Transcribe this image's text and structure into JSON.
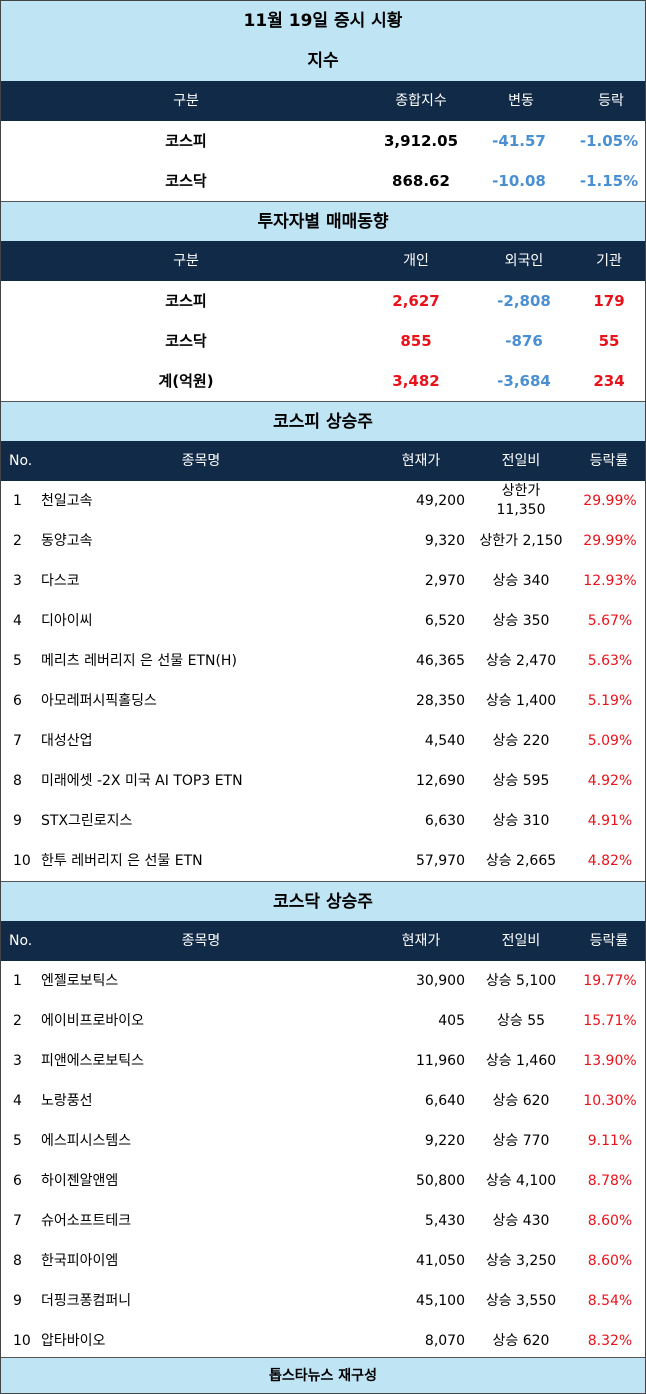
{
  "title": "11월 19일 증시 시황",
  "index": {
    "section_title": "지수",
    "headers": [
      "구분",
      "종합지수",
      "변동",
      "등락"
    ],
    "rows": [
      {
        "name": "코스피",
        "value": "3,912.05",
        "change": "-41.57",
        "rate": "-1.05%"
      },
      {
        "name": "코스닥",
        "value": "868.62",
        "change": "-10.08",
        "rate": "-1.15%"
      }
    ]
  },
  "investors": {
    "section_title": "투자자별 매매동향",
    "headers": [
      "구분",
      "개인",
      "외국인",
      "기관"
    ],
    "rows": [
      {
        "name": "코스피",
        "individual": "2,627",
        "foreign": "-2,808",
        "institution": "179"
      },
      {
        "name": "코스닥",
        "individual": "855",
        "foreign": "-876",
        "institution": "55"
      },
      {
        "name": "계(억원)",
        "individual": "3,482",
        "foreign": "-3,684",
        "institution": "234"
      }
    ]
  },
  "kospi_gainers": {
    "section_title": "코스피 상승주",
    "headers": [
      "No.",
      "종목명",
      "현재가",
      "전일비",
      "등락률"
    ],
    "rows": [
      {
        "no": "1",
        "name": "천일고속",
        "price": "49,200",
        "diff_line1": "상한가",
        "diff_line2": "11,350",
        "rate": "29.99%"
      },
      {
        "no": "2",
        "name": "동양고속",
        "price": "9,320",
        "diff": "상한가 2,150",
        "rate": "29.99%"
      },
      {
        "no": "3",
        "name": "다스코",
        "price": "2,970",
        "diff": "상승 340",
        "rate": "12.93%"
      },
      {
        "no": "4",
        "name": "디아이씨",
        "price": "6,520",
        "diff": "상승 350",
        "rate": "5.67%"
      },
      {
        "no": "5",
        "name": "메리츠 레버리지 은 선물 ETN(H)",
        "price": "46,365",
        "diff": "상승 2,470",
        "rate": "5.63%"
      },
      {
        "no": "6",
        "name": "아모레퍼시픽홀딩스",
        "price": "28,350",
        "diff": "상승 1,400",
        "rate": "5.19%"
      },
      {
        "no": "7",
        "name": "대성산업",
        "price": "4,540",
        "diff": "상승 220",
        "rate": "5.09%"
      },
      {
        "no": "8",
        "name": "미래에셋 -2X 미국 AI TOP3 ETN",
        "price": "12,690",
        "diff": "상승 595",
        "rate": "4.92%"
      },
      {
        "no": "9",
        "name": "STX그린로지스",
        "price": "6,630",
        "diff": "상승 310",
        "rate": "4.91%"
      },
      {
        "no": "10",
        "name": "한투 레버리지 은 선물 ETN",
        "price": "57,970",
        "diff": "상승 2,665",
        "rate": "4.82%"
      }
    ]
  },
  "kosdaq_gainers": {
    "section_title": "코스닥 상승주",
    "headers": [
      "No.",
      "종목명",
      "현재가",
      "전일비",
      "등락률"
    ],
    "rows": [
      {
        "no": "1",
        "name": "엔젤로보틱스",
        "price": "30,900",
        "diff": "상승 5,100",
        "rate": "19.77%"
      },
      {
        "no": "2",
        "name": "에이비프로바이오",
        "price": "405",
        "diff": "상승 55",
        "rate": "15.71%"
      },
      {
        "no": "3",
        "name": "피앤에스로보틱스",
        "price": "11,960",
        "diff": "상승 1,460",
        "rate": "13.90%"
      },
      {
        "no": "4",
        "name": "노랑풍선",
        "price": "6,640",
        "diff": "상승 620",
        "rate": "10.30%"
      },
      {
        "no": "5",
        "name": "에스피시스템스",
        "price": "9,220",
        "diff": "상승 770",
        "rate": "9.11%"
      },
      {
        "no": "6",
        "name": "하이젠알앤엠",
        "price": "50,800",
        "diff": "상승 4,100",
        "rate": "8.78%"
      },
      {
        "no": "7",
        "name": "슈어소프트테크",
        "price": "5,430",
        "diff": "상승 430",
        "rate": "8.60%"
      },
      {
        "no": "8",
        "name": "한국피아이엠",
        "price": "41,050",
        "diff": "상승 3,250",
        "rate": "8.60%"
      },
      {
        "no": "9",
        "name": "더핑크퐁컴퍼니",
        "price": "45,100",
        "diff": "상승 3,550",
        "rate": "8.54%"
      },
      {
        "no": "10",
        "name": "압타바이오",
        "price": "8,070",
        "diff": "상승 620",
        "rate": "8.32%"
      }
    ]
  },
  "footer": "톱스타뉴스 재구성",
  "colors": {
    "header_bg": "#102a47",
    "title_bg": "#bfe4f4",
    "positive": "#e8121b",
    "negative": "#4a8fd1"
  }
}
